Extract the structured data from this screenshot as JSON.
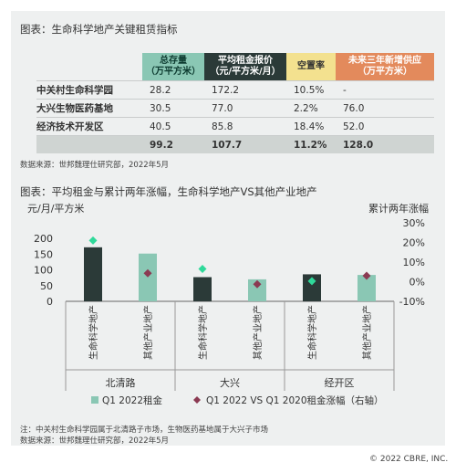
{
  "table": {
    "title": "图表：生命科学地产关键租赁指标",
    "headers": [
      "总存量\n（万平方米）",
      "平均租金报价\n（元/平方米/月）",
      "空置率",
      "未来三年新增供应\n（万平方米）"
    ],
    "rows": [
      {
        "label": "中关村生命科学园",
        "stock": "28.2",
        "rent": "172.2",
        "vacancy": "10.5%",
        "supply": "-"
      },
      {
        "label": "大兴生物医药基地",
        "stock": "30.5",
        "rent": "77.0",
        "vacancy": "2.2%",
        "supply": "76.0"
      },
      {
        "label": "经济技术开发区",
        "stock": "40.5",
        "rent": "85.8",
        "vacancy": "18.4%",
        "supply": "52.0"
      }
    ],
    "total": {
      "stock": "99.2",
      "rent": "107.7",
      "vacancy": "11.2%",
      "supply": "128.0"
    },
    "source": "数据来源：世邦魏理仕研究部，2022年5月"
  },
  "chart_data": {
    "type": "bar",
    "title": "图表：平均租金与累计两年涨幅，生命科学地产VS其他产业地产",
    "ylabel": "元/月/平方米",
    "y2label": "累计两年涨幅",
    "ylim": [
      0,
      250
    ],
    "yticks": [
      0,
      50,
      100,
      150,
      200
    ],
    "y2lim": [
      -0.1,
      0.3
    ],
    "y2ticks": [
      "-10%",
      "0%",
      "10%",
      "20%",
      "30%"
    ],
    "categories": [
      "生命科学地产",
      "其他产业地产",
      "生命科学地产",
      "其他产业地产",
      "生命科学地产",
      "其他产业地产"
    ],
    "groups": [
      "北清路",
      "大兴",
      "经开区"
    ],
    "bar_colors": [
      "#2b3a38",
      "#8ac7b4",
      "#2b3a38",
      "#8ac7b4",
      "#2b3a38",
      "#8ac7b4"
    ],
    "marker_colors": [
      "#2fd99a",
      "#8b3a52",
      "#2fd99a",
      "#8b3a52",
      "#2fd99a",
      "#8b3a52"
    ],
    "series": [
      {
        "name": "Q1 2022租金",
        "values": [
          172,
          152,
          77,
          70,
          86,
          84
        ]
      },
      {
        "name": "Q1 2022 VS Q1 2020租金涨幅（右轴）",
        "values": [
          0.21,
          0.043,
          0.065,
          -0.013,
          0.003,
          0.03
        ]
      }
    ],
    "grid": false,
    "legend": "bottom",
    "footnote": "注：中关村生命科学园属于北清路子市场，生物医药基地属于大兴子市场",
    "source": "数据来源：世邦魏理仕研究部，2022年5月"
  },
  "copyright": "© 2022 CBRE, INC."
}
